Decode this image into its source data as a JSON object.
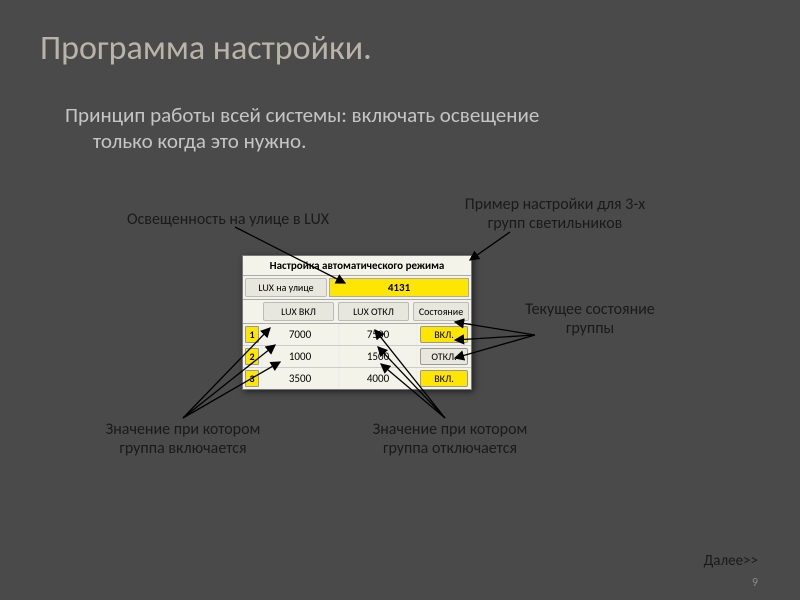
{
  "title": "Программа настройки.",
  "subtitle_line1": "Принцип работы всей системы: включать освещение",
  "subtitle_line2": "только когда это нужно.",
  "labels": {
    "lux_outdoor": "Освещенность на улице в LUX",
    "example_caption_l1": "Пример настройки для 3-х",
    "example_caption_l2": "групп светильников",
    "current_state_l1": "Текущее состояние",
    "current_state_l2": "группы",
    "value_on_l1": "Значение при котором",
    "value_on_l2": "группа включается",
    "value_off_l1": "Значение при котором",
    "value_off_l2": "группа отключается"
  },
  "panel": {
    "title": "Настройка автоматического режима",
    "lux_label": "LUX на улице",
    "lux_value": "4131",
    "headers": {
      "on": "LUX ВКЛ",
      "off": "LUX ОТКЛ",
      "state": "Состояние"
    },
    "rows": [
      {
        "n": "1",
        "on": "7000",
        "off": "7500",
        "state": "ВКЛ.",
        "active": true
      },
      {
        "n": "2",
        "on": "1000",
        "off": "1500",
        "state": "ОТКЛ.",
        "active": false
      },
      {
        "n": "3",
        "on": "3500",
        "off": "4000",
        "state": "ВКЛ.",
        "active": true
      }
    ]
  },
  "next": "Далее>>",
  "page": "9",
  "colors": {
    "slide_bg": "#4a4a4a",
    "title_color": "#b8b5a8",
    "highlight": "#ffe600",
    "panel_bg": "#f4f3ea",
    "label_text": "#1a1a1a"
  }
}
